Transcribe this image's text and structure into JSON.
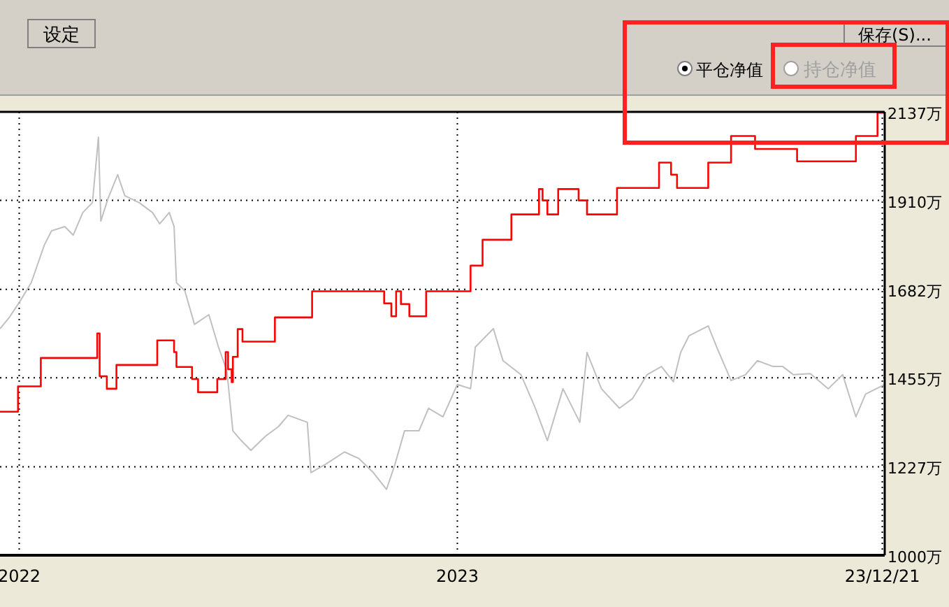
{
  "chart_data": {
    "type": "line",
    "annotations": [
      "设定",
      "保存(S)...",
      "平仓净值",
      "持仓净值"
    ],
    "xlim": [
      "2021-12-16",
      "2023-12-23"
    ],
    "xticks": [
      {
        "value": "2022-01-01",
        "label": "2022"
      },
      {
        "value": "2023-01-01",
        "label": "2023"
      },
      {
        "value": "2023-12-21",
        "label": "23/12/21"
      }
    ],
    "ylim": [
      1000,
      2137
    ],
    "yticks": [
      {
        "value": 1000,
        "label": "1000万"
      },
      {
        "value": 1227,
        "label": "1227万"
      },
      {
        "value": 1455,
        "label": "1455万"
      },
      {
        "value": 1682,
        "label": "1682万"
      },
      {
        "value": 1910,
        "label": "1910万"
      },
      {
        "value": 2137,
        "label": "2137万"
      }
    ],
    "grid": true,
    "series": [
      {
        "type": "line",
        "color": "#c0c0c0",
        "x": [
          "2021-12-16",
          "2021-12-24",
          "2022-01-02",
          "2022-01-11",
          "2022-01-22",
          "2022-01-28",
          "2022-02-08",
          "2022-02-15",
          "2022-02-23",
          "2022-03-03",
          "2022-03-08",
          "2022-03-10",
          "2022-03-16",
          "2022-03-24",
          "2022-03-30",
          "2022-04-11",
          "2022-04-22",
          "2022-04-28",
          "2022-05-06",
          "2022-05-10",
          "2022-05-12",
          "2022-05-19",
          "2022-05-27",
          "2022-06-08",
          "2022-06-16",
          "2022-06-23",
          "2022-06-28",
          "2022-07-05",
          "2022-07-13",
          "2022-07-25",
          "2022-08-05",
          "2022-08-13",
          "2022-08-29",
          "2022-09-01",
          "2022-09-13",
          "2022-09-29",
          "2022-10-11",
          "2022-10-23",
          "2022-11-03",
          "2022-11-10",
          "2022-11-18",
          "2022-11-30",
          "2022-12-08",
          "2022-12-20",
          "2023-01-01",
          "2023-01-12",
          "2023-01-16",
          "2023-01-31",
          "2023-02-08",
          "2023-02-23",
          "2023-03-07",
          "2023-03-17",
          "2023-03-30",
          "2023-04-13",
          "2023-04-19",
          "2023-05-01",
          "2023-05-16",
          "2023-05-27",
          "2023-06-08",
          "2023-06-20",
          "2023-06-30",
          "2023-07-06",
          "2023-07-13",
          "2023-07-29",
          "2023-08-05",
          "2023-08-17",
          "2023-08-29",
          "2023-09-08",
          "2023-09-21",
          "2023-09-29",
          "2023-10-08",
          "2023-10-22",
          "2023-11-06",
          "2023-11-18",
          "2023-11-29",
          "2023-12-07",
          "2023-12-23"
        ],
        "values": [
          1581,
          1611,
          1653,
          1699,
          1796,
          1832,
          1843,
          1821,
          1879,
          1904,
          2072,
          1857,
          1915,
          1976,
          1922,
          1904,
          1879,
          1850,
          1879,
          1843,
          1699,
          1678,
          1592,
          1617,
          1534,
          1473,
          1319,
          1294,
          1269,
          1305,
          1330,
          1359,
          1341,
          1212,
          1233,
          1265,
          1248,
          1212,
          1169,
          1233,
          1319,
          1319,
          1377,
          1355,
          1438,
          1427,
          1534,
          1581,
          1499,
          1463,
          1377,
          1294,
          1427,
          1341,
          1520,
          1427,
          1377,
          1402,
          1463,
          1484,
          1445,
          1520,
          1563,
          1588,
          1534,
          1448,
          1463,
          1499,
          1484,
          1484,
          1463,
          1466,
          1427,
          1463,
          1355,
          1413,
          1438
        ]
      },
      {
        "type": "step",
        "color": "#ff0000",
        "x": [
          "2021-12-16",
          "2021-12-31",
          "2022-01-19",
          "2022-03-07",
          "2022-03-09",
          "2022-03-15",
          "2022-03-23",
          "2022-04-26",
          "2022-05-10",
          "2022-05-12",
          "2022-05-25",
          "2022-05-30",
          "2022-06-15",
          "2022-06-22",
          "2022-06-24",
          "2022-06-27",
          "2022-06-28",
          "2022-07-02",
          "2022-07-06",
          "2022-08-02",
          "2022-09-02",
          "2022-11-01",
          "2022-11-07",
          "2022-11-11",
          "2022-11-15",
          "2022-11-22",
          "2022-12-06",
          "2023-01-12",
          "2023-01-22",
          "2023-02-15",
          "2023-03-10",
          "2023-03-13",
          "2023-03-17",
          "2023-03-26",
          "2023-04-12",
          "2023-04-19",
          "2023-05-14",
          "2023-06-18",
          "2023-06-28",
          "2023-07-03",
          "2023-07-29",
          "2023-08-17",
          "2023-09-06",
          "2023-10-11",
          "2023-11-29",
          "2023-12-17",
          "2023-12-23"
        ],
        "values": [
          1368,
          1433,
          1506,
          1569,
          1459,
          1427,
          1488,
          1551,
          1521,
          1483,
          1452,
          1418,
          1452,
          1521,
          1477,
          1444,
          1509,
          1580,
          1548,
          1610,
          1677,
          1646,
          1613,
          1677,
          1644,
          1613,
          1677,
          1743,
          1809,
          1874,
          1939,
          1910,
          1874,
          1939,
          1910,
          1874,
          1942,
          2007,
          1976,
          1942,
          2007,
          2075,
          2042,
          2010,
          2075,
          2135,
          2135
        ]
      }
    ]
  }
}
